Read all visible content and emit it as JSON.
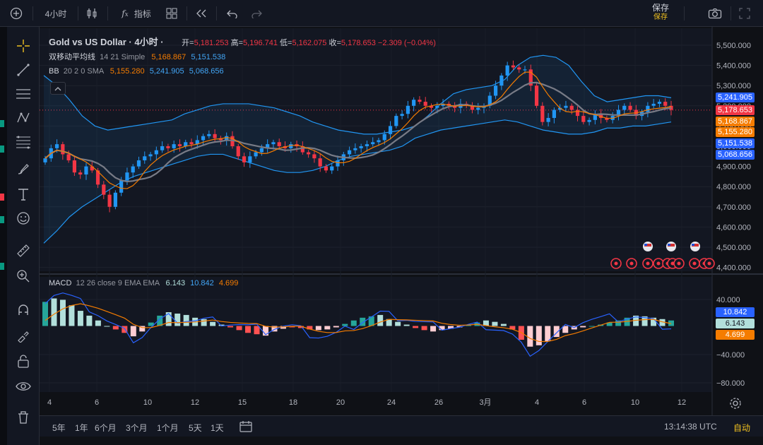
{
  "toolbar": {
    "interval": "4小时",
    "indicators_label": "指标",
    "save_label": "保存",
    "save_sub": "保存"
  },
  "legend": {
    "symbol": "Gold vs US Dollar · 4小时 ·",
    "ohlc": {
      "open_label": "开=",
      "open": "5,181.253",
      "high_label": "高=",
      "high": "5,196.741",
      "low_label": "低=",
      "low": "5,162.075",
      "close_label": "收=",
      "close": "5,178.653",
      "change": "−2.309 (−0.04%)"
    },
    "ma": {
      "name": "双移动平均线",
      "params": "14 21 Simple",
      "v1": "5,168.867",
      "v2": "5,151.538"
    },
    "bb": {
      "name": "BB",
      "params": "20 2 0 SMA",
      "v1": "5,155.280",
      "v2": "5,241.905",
      "v3": "5,068.656"
    },
    "macd": {
      "name": "MACD",
      "params": "12 26 close 9 EMA EMA",
      "v1": "6.143",
      "v2": "10.842",
      "v3": "4.699"
    }
  },
  "price_axis": [
    "5,500.000",
    "5,400.000",
    "5,300.000",
    "5,200.000",
    "5,100.000",
    "5,000.000",
    "4,900.000",
    "4,800.000",
    "4,700.000",
    "4,600.000",
    "4,500.000",
    "4,400.000"
  ],
  "price_tags": [
    {
      "value": "5,241.905",
      "color": "#2962ff"
    },
    {
      "value": "5,178.653",
      "color": "#f23645"
    },
    {
      "value": "5,168.867",
      "color": "#f57c00"
    },
    {
      "value": "5,155.280",
      "color": "#f57c00"
    },
    {
      "value": "5,151.538",
      "color": "#2962ff"
    },
    {
      "value": "5,068.656",
      "color": "#2962ff"
    }
  ],
  "macd_axis": [
    "40.000",
    "0.000",
    "−40.000",
    "−80.000"
  ],
  "macd_tags": [
    {
      "value": "10.842",
      "color": "#2962ff"
    },
    {
      "value": "6.143",
      "color": "#b2dfdb"
    },
    {
      "value": "4.699",
      "color": "#f57c00"
    }
  ],
  "time_axis": [
    "4",
    "6",
    "10",
    "12",
    "15",
    "18",
    "20",
    "24",
    "26",
    "3月",
    "4",
    "6",
    "10",
    "12"
  ],
  "timeframes": [
    "5年",
    "1年",
    "6个月",
    "3个月",
    "1个月",
    "5天",
    "1天"
  ],
  "clock": "13:14:38 UTC",
  "auto_label": "自动",
  "chart_data": {
    "type": "candlestick",
    "close": [
      4940,
      4990,
      5010,
      4960,
      4930,
      4870,
      4860,
      4900,
      4880,
      4810,
      4760,
      4700,
      4770,
      4830,
      4870,
      4900,
      4930,
      4950,
      4960,
      4980,
      5000,
      4990,
      5010,
      5000,
      5020,
      5010,
      5030,
      5050,
      5060,
      5040,
      5030,
      5050,
      5000,
      4950,
      4920,
      4950,
      4970,
      4990,
      5010,
      5020,
      5000,
      4990,
      5010,
      5000,
      4970,
      4960,
      4940,
      4900,
      4880,
      4900,
      4930,
      4960,
      4980,
      4990,
      5000,
      5010,
      5020,
      5030,
      5060,
      5100,
      5150,
      5160,
      5200,
      5230,
      5220,
      5200,
      5190,
      5200,
      5210,
      5200,
      5190,
      5210,
      5200,
      5180,
      5190,
      5200,
      5250,
      5300,
      5350,
      5400,
      5390,
      5380,
      5380,
      5300,
      5200,
      5120,
      5140,
      5180,
      5190,
      5200,
      5180,
      5150,
      5120,
      5130,
      5160,
      5140,
      5130,
      5150,
      5180,
      5200,
      5180,
      5150,
      5170,
      5200,
      5210,
      5220,
      5200,
      5180
    ],
    "bb_upper": [
      5350,
      5300,
      5230,
      5150,
      5100,
      5080,
      5090,
      5100,
      5110,
      5120,
      5130,
      5160,
      5180,
      5200,
      5210,
      5210,
      5210,
      5200,
      5190,
      5170,
      5150,
      5120,
      5100,
      5080,
      5070,
      5060,
      5060,
      5070,
      5080,
      5100,
      5150,
      5210,
      5260,
      5280,
      5290,
      5300,
      5330,
      5400,
      5440,
      5450,
      5440,
      5400,
      5320,
      5250,
      5220,
      5230,
      5240,
      5250,
      5250,
      5240
    ],
    "bb_lower": [
      4520,
      4580,
      4650,
      4700,
      4740,
      4780,
      4820,
      4850,
      4870,
      4890,
      4910,
      4930,
      4950,
      4960,
      4960,
      4940,
      4920,
      4900,
      4880,
      4870,
      4870,
      4880,
      4900,
      4930,
      4950,
      4960,
      4970,
      4980,
      5000,
      5040,
      5060,
      5080,
      5090,
      5100,
      5110,
      5120,
      5130,
      5120,
      5100,
      5080,
      5070,
      5060,
      5060,
      5070,
      5090,
      5090,
      5100,
      5100,
      5110,
      5120
    ],
    "macd_hist": [
      35,
      40,
      38,
      30,
      22,
      15,
      8,
      0,
      -5,
      -10,
      -15,
      -8,
      5,
      15,
      20,
      18,
      16,
      12,
      10,
      6,
      2,
      -2,
      -6,
      -10,
      -12,
      -14,
      -8,
      -4,
      -2,
      -3,
      -5,
      -6,
      -5,
      -2,
      3,
      8,
      12,
      14,
      16,
      10,
      6,
      2,
      -3,
      -6,
      -8,
      -6,
      -4,
      -2,
      2,
      5,
      8,
      6,
      3,
      -5,
      -20,
      -30,
      -28,
      -22,
      -16,
      -10,
      -5,
      -2,
      0,
      2,
      5,
      8,
      12,
      15,
      14,
      12,
      10,
      8
    ],
    "macd_ylim": [
      -80,
      60
    ],
    "price_ylim": [
      4400,
      5500
    ]
  }
}
